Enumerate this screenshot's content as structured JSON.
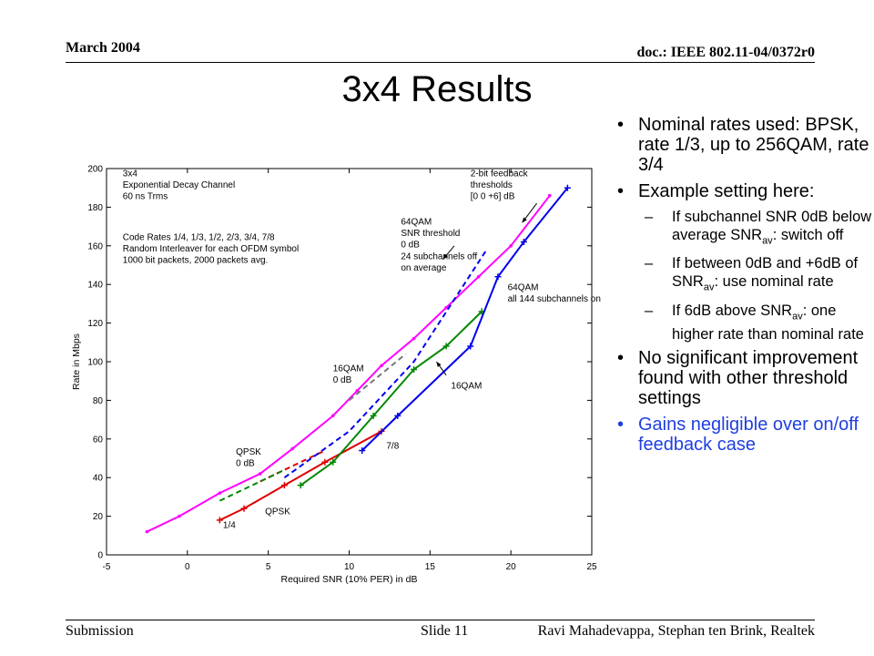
{
  "header": {
    "date": "March 2004",
    "doc": "doc.: IEEE 802.11-04/0372r0"
  },
  "footer": {
    "left": "Submission",
    "center": "Slide 11",
    "right": "Ravi Mahadevappa, Stephan ten Brink, Realtek"
  },
  "slide": {
    "title": "3x4 Results"
  },
  "notes": {
    "b1": "Nominal rates used: BPSK, rate 1/3, up to 256QAM, rate 3/4",
    "b2": "Example setting here:",
    "s1_a": "If subchannel SNR 0dB below average SNR",
    "s1_sub": "av",
    "s1_b": ": switch off",
    "s2_a": "If between 0dB and +6dB of SNR",
    "s2_sub": "av",
    "s2_b": ": use nominal rate",
    "s3_a": "If 6dB above SNR",
    "s3_sub": "av",
    "s3_b": ": one higher rate than nominal rate",
    "b3": "No significant improvement found with other threshold settings",
    "b4": "Gains negligible over on/off feedback case",
    "b4_color": "#1f3fe0"
  },
  "chart_data": {
    "type": "line",
    "xlabel": "Required SNR (10% PER) in dB",
    "ylabel": "Rate in Mbps",
    "xlim": [
      -5,
      25
    ],
    "ylim": [
      0,
      200
    ],
    "xticks": [
      -5,
      0,
      5,
      10,
      15,
      20,
      25
    ],
    "yticks": [
      0,
      20,
      40,
      60,
      80,
      100,
      120,
      140,
      160,
      180,
      200
    ],
    "grid": false,
    "series": [
      {
        "color": "#ff00ff",
        "style": "solid",
        "marker": "dot",
        "x": [
          -2.5,
          -0.5,
          2,
          4.5,
          6.5,
          9,
          10.5,
          12,
          14,
          16,
          18,
          20,
          22.4
        ],
        "y": [
          12,
          20,
          32,
          42,
          55,
          72,
          85,
          98,
          112,
          128,
          144,
          160,
          186
        ]
      },
      {
        "color": "#dd0000",
        "style": "solid",
        "marker": "plus",
        "x": [
          2,
          3.5,
          6,
          8.5,
          12
        ],
        "y": [
          18,
          24,
          36,
          48,
          64
        ]
      },
      {
        "color": "#dd0000",
        "style": "dashed",
        "marker": "none",
        "x": [
          4.5,
          6.5,
          8.5
        ],
        "y": [
          38,
          46,
          54
        ]
      },
      {
        "color": "#008800",
        "style": "solid",
        "marker": "plus",
        "x": [
          7,
          9,
          11.5,
          14,
          16,
          18.2
        ],
        "y": [
          36,
          48,
          72,
          96,
          108,
          126
        ]
      },
      {
        "color": "#008800",
        "style": "dashed",
        "marker": "none",
        "x": [
          2,
          4,
          6
        ],
        "y": [
          28,
          36,
          44
        ]
      },
      {
        "color": "#0000ee",
        "style": "solid",
        "marker": "plus",
        "x": [
          10.8,
          13,
          17.5,
          19.2,
          20.8,
          23.5
        ],
        "y": [
          54,
          72,
          108,
          144,
          162,
          190
        ]
      },
      {
        "color": "#0000ee",
        "style": "dashed",
        "marker": "none",
        "x": [
          6,
          10,
          14,
          18.5
        ],
        "y": [
          40,
          64,
          100,
          158
        ]
      },
      {
        "color": "#777777",
        "style": "dashed",
        "marker": "none",
        "x": [
          10,
          13.5
        ],
        "y": [
          80,
          104
        ]
      }
    ],
    "annotations": [
      {
        "x": -4,
        "y": 196,
        "lines": [
          "3x4",
          "Exponential Decay Channel",
          "60 ns Trms"
        ]
      },
      {
        "x": -4,
        "y": 163,
        "lines": [
          "Code Rates 1/4, 1/3, 1/2, 2/3, 3/4, 7/8",
          "Random Interleaver for each OFDM symbol",
          "1000 bit packets, 2000 packets avg."
        ]
      },
      {
        "x": 17.5,
        "y": 196,
        "lines": [
          "2-bit feedback",
          "thresholds",
          "[0 0 +6] dB"
        ]
      },
      {
        "x": 13.2,
        "y": 171,
        "lines": [
          "64QAM",
          "SNR threshold",
          "0 dB",
          "24 subchannels off",
          "on average"
        ]
      },
      {
        "x": 19.8,
        "y": 137,
        "lines": [
          "64QAM",
          "all 144 subchannels on"
        ]
      },
      {
        "x": 9,
        "y": 95,
        "lines": [
          "16QAM",
          "0 dB"
        ]
      },
      {
        "x": 16.3,
        "y": 86,
        "lines": [
          "16QAM"
        ]
      },
      {
        "x": 12.3,
        "y": 55,
        "lines": [
          "7/8"
        ]
      },
      {
        "x": 3,
        "y": 52,
        "lines": [
          "QPSK",
          "0 dB"
        ]
      },
      {
        "x": 4.8,
        "y": 21,
        "lines": [
          "QPSK"
        ]
      },
      {
        "x": 2.2,
        "y": 14,
        "lines": [
          "1/4"
        ]
      }
    ],
    "arrows": [
      {
        "from": [
          21.6,
          182
        ],
        "to": [
          20.7,
          172
        ]
      },
      {
        "from": [
          16,
          93
        ],
        "to": [
          15.4,
          100
        ]
      },
      {
        "from": [
          16.5,
          160
        ],
        "to": [
          15.8,
          153
        ]
      }
    ]
  }
}
